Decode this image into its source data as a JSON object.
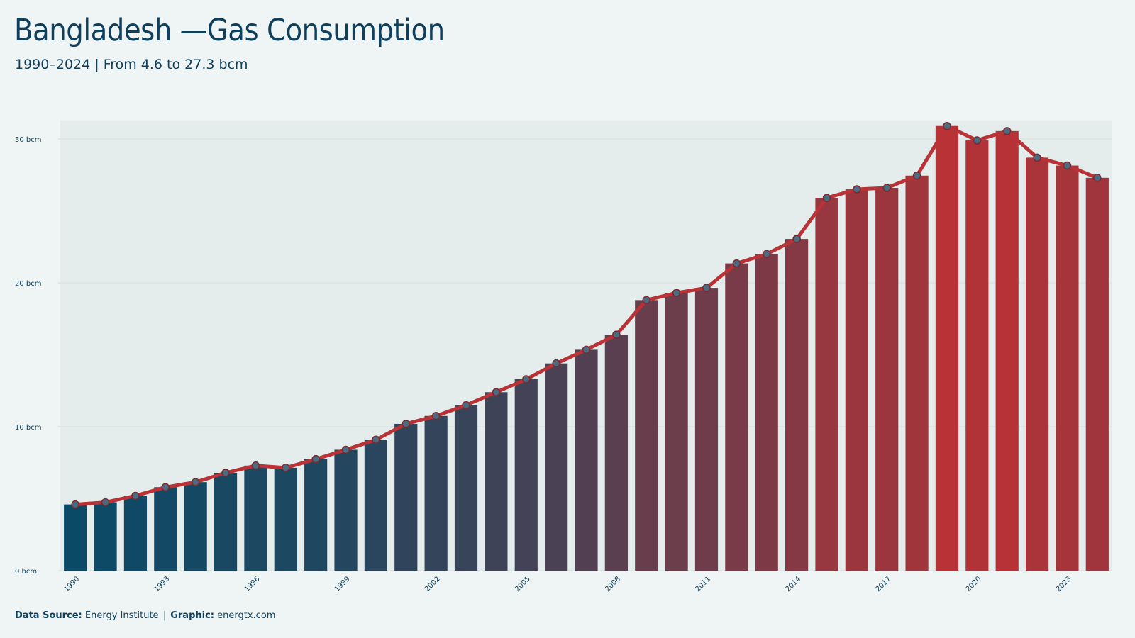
{
  "title": "Bangladesh —Gas Consumption",
  "subtitle": "1990–2024 | From 4.6 to 27.3 bcm",
  "footer": {
    "source_label": "Data Source:",
    "source_value": "Energy Institute",
    "separator": "|",
    "graphic_label": "Graphic:",
    "graphic_value": "energtx.com"
  },
  "colors": {
    "start": "#0b4a66",
    "end": "#b83236",
    "line": "#b83236",
    "marker_fill": "#4a6b80",
    "marker_stroke": "#7a2a30",
    "grid": "#cfd8da",
    "bar_gap_bg": "#dde6e6"
  },
  "chart_data": {
    "type": "bar",
    "overlay": "line",
    "x": [
      1990,
      1991,
      1992,
      1993,
      1994,
      1995,
      1996,
      1997,
      1998,
      1999,
      2000,
      2001,
      2002,
      2003,
      2004,
      2005,
      2006,
      2007,
      2008,
      2009,
      2010,
      2011,
      2012,
      2013,
      2014,
      2015,
      2016,
      2017,
      2018,
      2019,
      2020,
      2021,
      2022,
      2023,
      2024
    ],
    "values": [
      4.6,
      4.75,
      5.2,
      5.8,
      6.15,
      6.8,
      7.3,
      7.15,
      7.75,
      8.4,
      9.1,
      10.2,
      10.75,
      11.5,
      12.4,
      13.3,
      14.4,
      15.35,
      16.4,
      18.8,
      19.3,
      19.65,
      21.35,
      22.0,
      23.05,
      25.9,
      26.5,
      26.6,
      27.45,
      30.9,
      29.9,
      30.55,
      28.7,
      28.15,
      27.3
    ],
    "y_ticks": [
      0,
      10,
      20,
      30
    ],
    "y_tick_labels": [
      "0 bcm",
      "10 bcm",
      "20 bcm",
      "30 bcm"
    ],
    "x_tick_labels": [
      "1990",
      "1993",
      "1996",
      "1999",
      "2002",
      "2005",
      "2008",
      "2011",
      "2014",
      "2017",
      "2020",
      "2023"
    ],
    "ylim": [
      0,
      31
    ],
    "unit": "bcm",
    "grid": true,
    "legend": "none"
  }
}
